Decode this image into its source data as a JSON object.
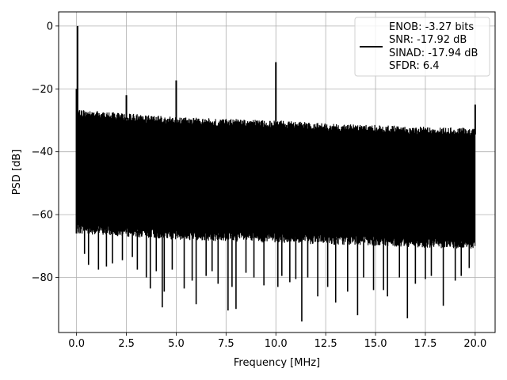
{
  "chart_data": {
    "type": "line",
    "title": "",
    "xlabel": "Frequency [MHz]",
    "ylabel": "PSD [dB]",
    "xlim": [
      -0.9,
      21.0
    ],
    "ylim": [
      -97.5,
      4.5
    ],
    "xticks": [
      0.0,
      2.5,
      5.0,
      7.5,
      10.0,
      12.5,
      15.0,
      17.5,
      20.0
    ],
    "xtick_labels": [
      "0.0",
      "2.5",
      "5.0",
      "7.5",
      "10.0",
      "12.5",
      "15.0",
      "17.5",
      "20.0"
    ],
    "yticks": [
      0,
      -20,
      -40,
      -60,
      -80
    ],
    "ytick_labels": [
      "0",
      "−20",
      "−40",
      "−60",
      "−80"
    ],
    "grid": true,
    "legend_position": "upper right",
    "legend": [
      "ENOB: -3.27 bits",
      "SNR: -17.92 dB",
      "SINAD: -17.94 dB",
      "SFDR: 6.4"
    ],
    "series": [
      {
        "color": "#000000",
        "style": "dense noise floor",
        "x_range": [
          0.0,
          20.0
        ],
        "floor_upper": [
          [
            0.0,
            -26.5
          ],
          [
            2.0,
            -27.5
          ],
          [
            5.0,
            -29.0
          ],
          [
            7.5,
            -29.5
          ],
          [
            10.0,
            -30.0
          ],
          [
            12.5,
            -31.0
          ],
          [
            15.0,
            -31.5
          ],
          [
            17.5,
            -32.0
          ],
          [
            20.0,
            -32.5
          ]
        ],
        "floor_lower": [
          [
            0.0,
            -66.0
          ],
          [
            2.5,
            -67.0
          ],
          [
            5.0,
            -68.0
          ],
          [
            7.5,
            -68.5
          ],
          [
            10.0,
            -69.0
          ],
          [
            12.5,
            -69.5
          ],
          [
            15.0,
            -70.0
          ],
          [
            17.5,
            -70.5
          ],
          [
            20.0,
            -71.0
          ]
        ],
        "spurs": [
          {
            "x": 0.05,
            "y": 0.0
          },
          {
            "x": 2.5,
            "y": -22.0
          },
          {
            "x": 5.0,
            "y": -17.3
          },
          {
            "x": 10.0,
            "y": -11.5
          },
          {
            "x": 20.0,
            "y": -25.0
          }
        ],
        "dips": [
          {
            "x": 0.4,
            "y": -72.5
          },
          {
            "x": 0.6,
            "y": -76.0
          },
          {
            "x": 1.1,
            "y": -77.5
          },
          {
            "x": 1.5,
            "y": -76.5
          },
          {
            "x": 1.8,
            "y": -75.5
          },
          {
            "x": 2.3,
            "y": -74.5
          },
          {
            "x": 2.8,
            "y": -73.5
          },
          {
            "x": 3.05,
            "y": -77.5
          },
          {
            "x": 3.5,
            "y": -80.0
          },
          {
            "x": 3.7,
            "y": -83.5
          },
          {
            "x": 4.0,
            "y": -78.0
          },
          {
            "x": 4.3,
            "y": -89.5
          },
          {
            "x": 4.4,
            "y": -84.5
          },
          {
            "x": 4.8,
            "y": -77.5
          },
          {
            "x": 5.4,
            "y": -83.5
          },
          {
            "x": 5.8,
            "y": -81.0
          },
          {
            "x": 6.0,
            "y": -88.5
          },
          {
            "x": 6.5,
            "y": -79.5
          },
          {
            "x": 6.8,
            "y": -78.0
          },
          {
            "x": 7.1,
            "y": -82.0
          },
          {
            "x": 7.6,
            "y": -90.5
          },
          {
            "x": 7.8,
            "y": -83.0
          },
          {
            "x": 8.0,
            "y": -90.0
          },
          {
            "x": 8.5,
            "y": -78.5
          },
          {
            "x": 8.9,
            "y": -80.0
          },
          {
            "x": 9.4,
            "y": -82.5
          },
          {
            "x": 10.1,
            "y": -83.0
          },
          {
            "x": 10.3,
            "y": -79.5
          },
          {
            "x": 10.7,
            "y": -81.5
          },
          {
            "x": 11.0,
            "y": -80.5
          },
          {
            "x": 11.3,
            "y": -94.0
          },
          {
            "x": 11.6,
            "y": -80.0
          },
          {
            "x": 12.1,
            "y": -86.0
          },
          {
            "x": 12.6,
            "y": -83.0
          },
          {
            "x": 13.0,
            "y": -88.0
          },
          {
            "x": 13.6,
            "y": -84.5
          },
          {
            "x": 14.1,
            "y": -92.0
          },
          {
            "x": 14.4,
            "y": -80.0
          },
          {
            "x": 14.9,
            "y": -84.0
          },
          {
            "x": 15.4,
            "y": -84.0
          },
          {
            "x": 15.6,
            "y": -86.0
          },
          {
            "x": 16.2,
            "y": -80.0
          },
          {
            "x": 16.6,
            "y": -93.0
          },
          {
            "x": 17.0,
            "y": -82.0
          },
          {
            "x": 17.5,
            "y": -80.5
          },
          {
            "x": 17.8,
            "y": -79.5
          },
          {
            "x": 18.4,
            "y": -89.0
          },
          {
            "x": 19.0,
            "y": -81.0
          },
          {
            "x": 19.3,
            "y": -79.5
          },
          {
            "x": 19.7,
            "y": -77.0
          }
        ]
      }
    ]
  }
}
